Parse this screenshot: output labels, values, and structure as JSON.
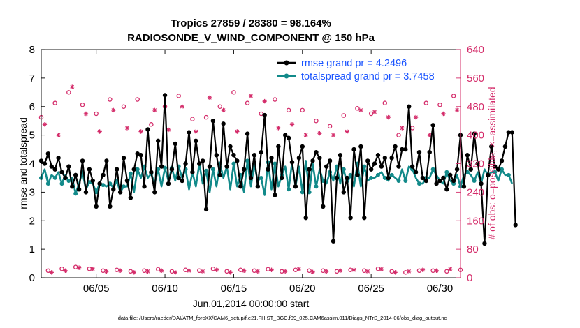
{
  "chart_data": {
    "type": "line",
    "title": "Tropics 27859 / 28380 = 98.164%",
    "subtitle": "RADIOSONDE_V_WIND_COMPONENT @ 150 hPa",
    "xlabel": "Jun.01,2014 00:00:00 start",
    "ylabel": "rmse and totalspread",
    "ylabel_right": "# of obs: o=possible; ×=assimilated",
    "footer": "data file: /Users/raeder/DAI/ATM_forcXX/CAM6_setup/f.e21.FHIST_BGC.f09_025.CAM6assim.011/Diags_NTrS_2014-06/obs_diag_output.nc",
    "xlim": [
      1.0,
      31.5
    ],
    "ylim": [
      0,
      8
    ],
    "ylim_right": [
      0,
      640
    ],
    "x_ticks": [
      5,
      10,
      15,
      20,
      25,
      30
    ],
    "x_tick_labels": [
      "06/05",
      "06/10",
      "06/15",
      "06/20",
      "06/25",
      "06/30"
    ],
    "y_ticks": [
      0,
      1,
      2,
      3,
      4,
      5,
      6,
      7,
      8
    ],
    "y_tick_labels": [
      "0",
      "1",
      "2",
      "3",
      "4",
      "5",
      "6",
      "7",
      "8"
    ],
    "y_ticks_right": [
      0,
      80,
      160,
      240,
      320,
      400,
      480,
      560,
      640
    ],
    "y_tick_labels_right": [
      "0",
      "80",
      "160",
      "240",
      "320",
      "400",
      "480",
      "560",
      "640"
    ],
    "legend_location": "top-right",
    "colors": {
      "rmse": "#000000",
      "spread": "#128a8a",
      "obs": "#d42c6a",
      "legend_text": "#1a54ff",
      "right_axis": "#d42c6a"
    },
    "series": [
      {
        "name": "rmse grand pr = 4.2496",
        "axis": "left",
        "start_day": 1.0,
        "step_days": 0.25,
        "values": [
          4.1,
          4.0,
          4.35,
          3.9,
          3.8,
          4.2,
          3.7,
          3.5,
          3.9,
          3.2,
          3.6,
          3.1,
          4.1,
          3.0,
          3.8,
          3.4,
          2.5,
          3.3,
          3.6,
          4.1,
          2.5,
          3.1,
          3.8,
          3.0,
          4.2,
          3.4,
          2.8,
          3.8,
          4.35,
          4.3,
          3.2,
          5.2,
          3.7,
          3.0,
          4.8,
          3.9,
          6.4,
          3.3,
          3.8,
          4.7,
          3.5,
          3.4,
          4.0,
          5.1,
          3.7,
          4.8,
          4.0,
          4.1,
          2.4,
          3.9,
          5.5,
          4.3,
          3.6,
          5.4,
          3.9,
          4.6,
          4.3,
          4.1,
          3.2,
          3.8,
          5.05,
          3.5,
          4.3,
          3.2,
          4.4,
          5.7,
          3.8,
          4.2,
          2.9,
          4.6,
          3.5,
          5.0,
          4.9,
          4.05,
          3.2,
          4.2,
          4.6,
          2.1,
          3.8,
          4.1,
          4.4,
          4.2,
          2.5,
          3.9,
          4.1,
          1.28,
          3.5,
          4.3,
          3.0,
          3.5,
          2.1,
          4.5,
          3.6,
          4.6,
          2.1,
          4.1,
          3.8,
          4.0,
          4.3,
          3.9,
          4.2,
          3.5,
          4.2,
          4.6,
          3.9,
          4.5,
          4.5,
          6.0,
          3.9,
          3.7,
          4.4,
          3.5,
          3.4,
          4.4,
          5.35,
          3.3,
          3.4,
          3.5,
          3.1,
          3.6,
          3.4,
          3.8,
          5.0,
          3.2,
          4.3,
          3.8,
          5.05,
          4.0,
          3.3,
          1.2,
          3.6,
          4.6,
          3.9,
          3.8,
          4.1,
          4.6,
          5.1,
          5.1,
          1.85
        ],
        "markers_every": 1
      },
      {
        "name": "totalspread grand pr = 3.7458",
        "axis": "left",
        "start_day": 1.0,
        "step_days": 0.25,
        "values": [
          3.5,
          3.8,
          3.3,
          3.6,
          3.5,
          3.7,
          3.3,
          3.6,
          3.4,
          3.5,
          2.95,
          3.3,
          3.7,
          3.1,
          3.35,
          3.3,
          3.0,
          3.3,
          3.25,
          3.2,
          3.3,
          3.15,
          3.4,
          3.0,
          3.2,
          3.2,
          3.65,
          3.0,
          3.8,
          3.5,
          3.9,
          3.5,
          3.65,
          3.3,
          3.8,
          3.2,
          3.85,
          3.4,
          3.85,
          3.4,
          3.9,
          3.5,
          3.8,
          3.1,
          3.7,
          3.2,
          4.0,
          3.3,
          3.75,
          3.0,
          3.8,
          3.2,
          4.0,
          3.5,
          3.9,
          3.1,
          4.0,
          3.2,
          3.6,
          3.0,
          4.1,
          3.2,
          3.95,
          3.4,
          3.5,
          2.9,
          4.05,
          3.1,
          4.0,
          3.2,
          3.6,
          3.9,
          3.1,
          4.05,
          3.2,
          3.9,
          3.0,
          4.1,
          3.0,
          4.0,
          3.2,
          3.8,
          3.4,
          3.3,
          3.7,
          3.4,
          3.9,
          3.3,
          3.8,
          3.3,
          3.6,
          3.2,
          4.0,
          3.2,
          3.9,
          3.4,
          3.5,
          3.5,
          3.6,
          3.7,
          3.5,
          3.4,
          3.6,
          3.5,
          3.4,
          3.8,
          3.4,
          3.9,
          3.8,
          3.5,
          3.3,
          3.3,
          3.5,
          3.5,
          3.8,
          3.6,
          3.4,
          3.3,
          3.7,
          3.4,
          3.3,
          3.6,
          3.2,
          3.6,
          3.7,
          3.6,
          3.4,
          3.7,
          3.3,
          3.8,
          3.6,
          3.7,
          3.7,
          3.4,
          3.8,
          3.6,
          3.6,
          3.3
        ],
        "markers_every": 2
      }
    ],
    "obs_possible": {
      "axis": "right",
      "marker": "o",
      "start_day": 1.0,
      "step_days": 0.5,
      "values": [
        450,
        20,
        490,
        25,
        520,
        30,
        485,
        25,
        460,
        20,
        500,
        22,
        480,
        18,
        500,
        20,
        430,
        24,
        480,
        18,
        510,
        22,
        445,
        20,
        450,
        25,
        480,
        18,
        520,
        22,
        490,
        20,
        460,
        24,
        500,
        18,
        470,
        22,
        470,
        20,
        440,
        20,
        425,
        18,
        455,
        22,
        475,
        20,
        460,
        25,
        490,
        18,
        400,
        15,
        420,
        20,
        490,
        20,
        485,
        18,
        510,
        22,
        510,
        24,
        440,
        18,
        470,
        25,
        490,
        22,
        500,
        20,
        470,
        35,
        440,
        15,
        495,
        20,
        485,
        20,
        360,
        25,
        420
      ]
    },
    "obs_assimilated": {
      "axis": "right",
      "marker": "x",
      "start_day": 1.25,
      "step_days": 0.5,
      "values": [
        430,
        15,
        400,
        20,
        535,
        28,
        460,
        25,
        410,
        18,
        470,
        20,
        420,
        15,
        410,
        18,
        470,
        20,
        415,
        15,
        480,
        20,
        410,
        18,
        505,
        22,
        470,
        15,
        410,
        20,
        510,
        18,
        495,
        22,
        420,
        18,
        430,
        24,
        400,
        16,
        405,
        18,
        400,
        20,
        410,
        22,
        470,
        18,
        465,
        24,
        450,
        15,
        420,
        18,
        450,
        22,
        400,
        20,
        460,
        24,
        470,
        18,
        480,
        20,
        420,
        22,
        400,
        18,
        460,
        18,
        410,
        22,
        450,
        28,
        420,
        15,
        385,
        20,
        460,
        18,
        400,
        20,
        455,
        20,
        420
      ]
    },
    "legend": [
      {
        "label": "rmse grand pr = 4.2496",
        "color": "#000000"
      },
      {
        "label": "totalspread grand pr = 3.7458",
        "color": "#128a8a"
      }
    ]
  }
}
